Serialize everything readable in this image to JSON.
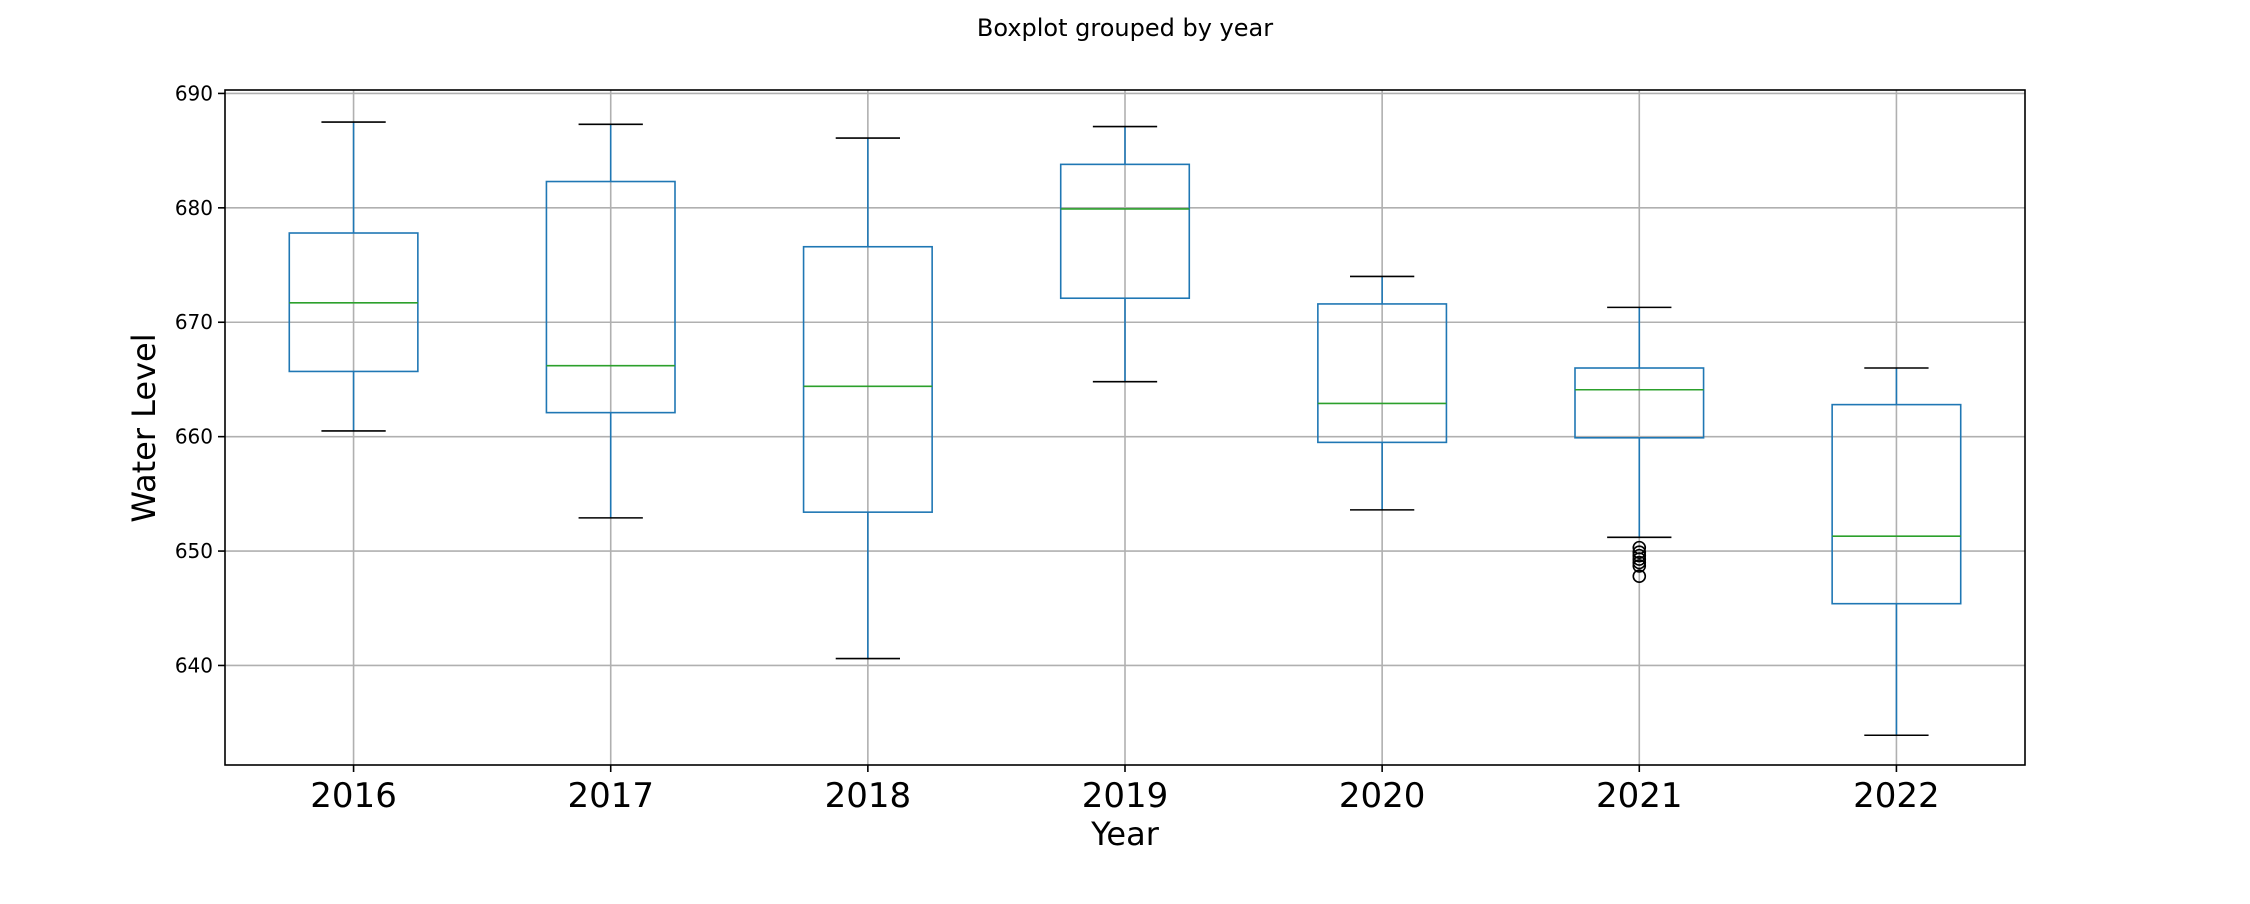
{
  "chart_data": {
    "type": "box",
    "title": "Boxplot grouped by year",
    "xlabel": "Year",
    "ylabel": "Water Level",
    "ylim": [
      631.3,
      690.3
    ],
    "yticks": [
      640,
      650,
      660,
      670,
      680,
      690
    ],
    "grid": true,
    "colors": {
      "box": "#1f77b4",
      "median": "#2ca02c",
      "whisker": "#1f77b4",
      "cap": "#000000",
      "flier": "#000000"
    },
    "categories": [
      "2016",
      "2017",
      "2018",
      "2019",
      "2020",
      "2021",
      "2022"
    ],
    "boxes": [
      {
        "label": "2016",
        "whislo": 660.5,
        "q1": 665.7,
        "med": 671.7,
        "q3": 677.8,
        "whishi": 687.5,
        "fliers": []
      },
      {
        "label": "2017",
        "whislo": 652.9,
        "q1": 662.1,
        "med": 666.2,
        "q3": 682.3,
        "whishi": 687.3,
        "fliers": []
      },
      {
        "label": "2018",
        "whislo": 640.6,
        "q1": 653.4,
        "med": 664.4,
        "q3": 676.6,
        "whishi": 686.1,
        "fliers": []
      },
      {
        "label": "2019",
        "whislo": 664.8,
        "q1": 672.1,
        "med": 679.9,
        "q3": 683.8,
        "whishi": 687.1,
        "fliers": []
      },
      {
        "label": "2020",
        "whislo": 653.6,
        "q1": 659.5,
        "med": 662.9,
        "q3": 671.6,
        "whishi": 674.0,
        "fliers": []
      },
      {
        "label": "2021",
        "whislo": 651.2,
        "q1": 659.9,
        "med": 664.1,
        "q3": 666.0,
        "whishi": 671.3,
        "fliers": [
          650.3,
          649.9,
          649.6,
          649.3,
          649.0,
          648.7,
          647.8
        ]
      },
      {
        "label": "2022",
        "whislo": 633.9,
        "q1": 645.4,
        "med": 651.3,
        "q3": 662.8,
        "whishi": 666.0,
        "fliers": []
      }
    ]
  }
}
